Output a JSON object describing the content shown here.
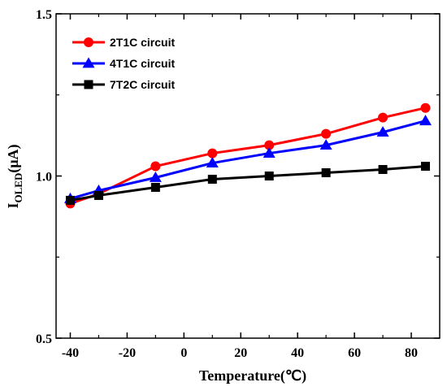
{
  "chart_data": {
    "type": "line",
    "x": [
      -40,
      -30,
      -10,
      10,
      30,
      50,
      70,
      85
    ],
    "series": [
      {
        "name": "2T1C circuit",
        "values": [
          0.915,
          0.945,
          1.03,
          1.07,
          1.095,
          1.13,
          1.18,
          1.21
        ],
        "color": "#ff0000",
        "marker": "circle"
      },
      {
        "name": "4T1C circuit",
        "values": [
          0.93,
          0.955,
          0.995,
          1.04,
          1.07,
          1.095,
          1.135,
          1.17
        ],
        "color": "#0000ff",
        "marker": "triangle"
      },
      {
        "name": "7T2C circuit",
        "values": [
          0.925,
          0.94,
          0.965,
          0.99,
          1.0,
          1.01,
          1.02,
          1.03
        ],
        "color": "#000000",
        "marker": "square"
      }
    ],
    "xlabel": "Temperature(℃)",
    "ylabel_main": "I",
    "ylabel_sub": "OLED",
    "ylabel_unit": "(μA)",
    "xlim": [
      -45,
      90
    ],
    "ylim": [
      0.5,
      1.5
    ],
    "xticks": [
      -40,
      -20,
      0,
      20,
      40,
      60,
      80
    ],
    "xtick_labels": [
      "-40",
      "-20",
      "0",
      "20",
      "40",
      "60",
      "80"
    ],
    "yticks": [
      0.5,
      1.0,
      1.5
    ],
    "ytick_labels": [
      "0.5",
      "1.0",
      "1.5"
    ],
    "grid": false,
    "legend_position": "top-left"
  }
}
